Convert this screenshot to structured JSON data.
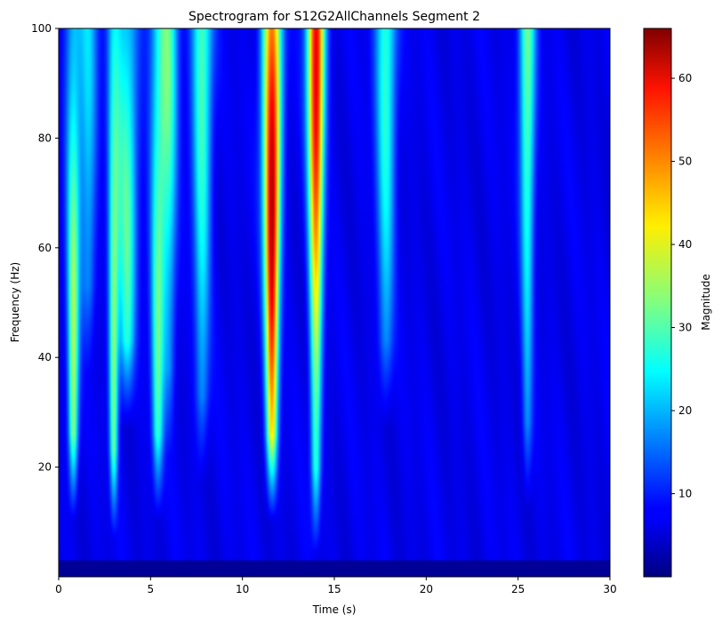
{
  "chart_data": {
    "type": "heatmap",
    "title": "Spectrogram for S12G2AllChannels Segment 2",
    "xlabel": "Time (s)",
    "ylabel": "Frequency (Hz)",
    "xlim": [
      0,
      30
    ],
    "ylim": [
      0,
      100
    ],
    "x_ticks": [
      0,
      5,
      10,
      15,
      20,
      25,
      30
    ],
    "y_ticks": [
      20,
      40,
      60,
      80,
      100
    ],
    "grid": false,
    "colormap": "jet",
    "colorbar": {
      "label": "Magnitude",
      "range": [
        0,
        66
      ],
      "ticks": [
        10,
        20,
        30,
        40,
        50,
        60
      ]
    },
    "background_level": 7,
    "features": [
      {
        "t": 0.8,
        "f_low": 18,
        "f_high": 100,
        "peak_f": 40,
        "peak": 36,
        "width": 0.35
      },
      {
        "t": 1.6,
        "f_low": 45,
        "f_high": 100,
        "peak_f": 90,
        "peak": 22,
        "width": 0.4
      },
      {
        "t": 3.0,
        "f_low": 15,
        "f_high": 100,
        "peak_f": 42,
        "peak": 33,
        "width": 0.3
      },
      {
        "t": 3.7,
        "f_low": 35,
        "f_high": 100,
        "peak_f": 62,
        "peak": 30,
        "width": 0.5
      },
      {
        "t": 5.4,
        "f_low": 18,
        "f_high": 100,
        "peak_f": 48,
        "peak": 31,
        "width": 0.4
      },
      {
        "t": 6.0,
        "f_low": 30,
        "f_high": 100,
        "peak_f": 95,
        "peak": 28,
        "width": 0.4
      },
      {
        "t": 7.8,
        "f_low": 25,
        "f_high": 100,
        "peak_f": 92,
        "peak": 30,
        "width": 0.45
      },
      {
        "t": 11.6,
        "f_low": 18,
        "f_high": 100,
        "peak_f": 68,
        "peak": 64,
        "width": 0.42
      },
      {
        "t": 14.0,
        "f_low": 12,
        "f_high": 100,
        "peak_f": 92,
        "peak": 60,
        "width": 0.38
      },
      {
        "t": 17.8,
        "f_low": 35,
        "f_high": 100,
        "peak_f": 95,
        "peak": 28,
        "width": 0.45
      },
      {
        "t": 25.5,
        "f_low": 20,
        "f_high": 100,
        "peak_f": 95,
        "peak": 32,
        "width": 0.35
      }
    ]
  }
}
